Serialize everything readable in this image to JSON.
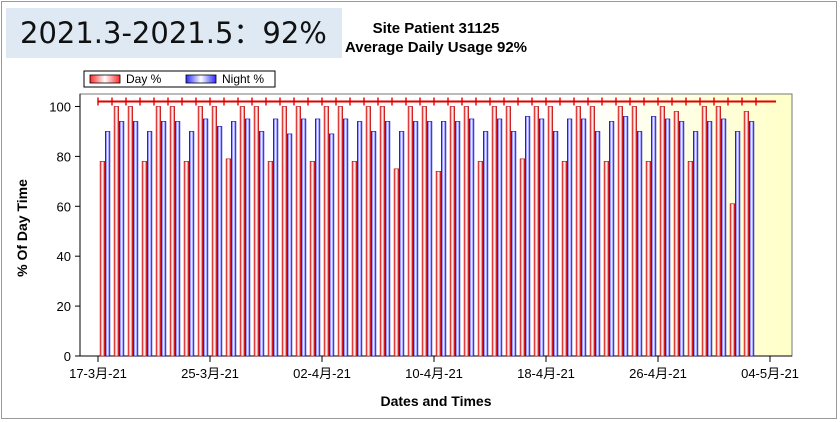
{
  "overlay": {
    "text": "2021.3-2021.5：92%"
  },
  "chart_data": {
    "type": "bar",
    "title_line1": "Site Patient 31125",
    "title_line2": "Average Daily Usage 92%",
    "xlabel": "Dates and Times",
    "ylabel": "% Of Day Time",
    "ylim": [
      0,
      105
    ],
    "yticks": [
      0,
      20,
      40,
      60,
      80,
      100
    ],
    "xtick_labels": [
      "17-3月-21",
      "25-3月-21",
      "02-4月-21",
      "10-4月-21",
      "18-4月-21",
      "26-4月-21",
      "04-5月-21"
    ],
    "xtick_day_index": [
      0,
      8,
      16,
      24,
      32,
      40,
      48
    ],
    "reference_line": 102,
    "legend": [
      {
        "name": "Day %",
        "color": "#ff3b3b"
      },
      {
        "name": "Night %",
        "color": "#3a3aff"
      }
    ],
    "series": [
      {
        "name": "Day %",
        "values": [
          78,
          100,
          100,
          78,
          100,
          100,
          78,
          100,
          100,
          79,
          100,
          100,
          78,
          100,
          100,
          78,
          100,
          100,
          78,
          100,
          100,
          75,
          100,
          100,
          74,
          100,
          100,
          78,
          100,
          100,
          79,
          100,
          100,
          78,
          100,
          100,
          78,
          100,
          100,
          78,
          100,
          98,
          78,
          100,
          100,
          61,
          98
        ]
      },
      {
        "name": "Night %",
        "values": [
          90,
          94,
          94,
          90,
          94,
          94,
          90,
          95,
          92,
          94,
          95,
          90,
          95,
          89,
          95,
          95,
          89,
          95,
          94,
          90,
          94,
          90,
          94,
          94,
          94,
          94,
          95,
          90,
          95,
          90,
          96,
          95,
          90,
          95,
          95,
          90,
          94,
          96,
          90,
          96,
          95,
          94,
          90,
          94,
          95,
          90,
          94
        ]
      }
    ]
  }
}
